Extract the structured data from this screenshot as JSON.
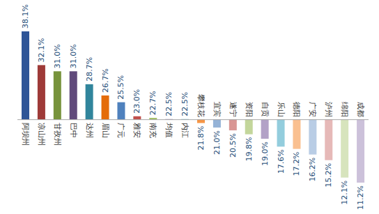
{
  "chart_data": {
    "type": "bar",
    "categories": [
      "阿坝州",
      "凉山州",
      "甘孜州",
      "巴中",
      "达州",
      "眉山",
      "广元",
      "雅安",
      "南充",
      "均值",
      "内江",
      "攀枝花",
      "宜宾",
      "遂宁",
      "资阳",
      "自贡",
      "乐山",
      "德阳",
      "广安",
      "泸州",
      "绵阳",
      "成都"
    ],
    "values": [
      38.1,
      32.1,
      31.0,
      31.0,
      28.7,
      26.7,
      25.5,
      23.0,
      22.7,
      22.5,
      22.5,
      21.8,
      21.0,
      20.5,
      19.8,
      19.0,
      17.6,
      17.2,
      16.2,
      15.2,
      12.1,
      11.2
    ],
    "value_labels": [
      "38.1%",
      "32.1%",
      "31.0%",
      "31.0%",
      "28.7%",
      "26.7%",
      "25.5%",
      "23.0%",
      "22.7%",
      "22.5%",
      "22.5%",
      "21.8%",
      "21.0%",
      "20.5%",
      "19.8%",
      "19.0%",
      "17.6%",
      "17.2%",
      "16.2%",
      "15.2%",
      "12.1%",
      "11.2%"
    ],
    "baseline": 22.4,
    "colors": [
      "#2F5597",
      "#9E3A38",
      "#77933C",
      "#604A7B",
      "#31859C",
      "#E46C0A",
      "#4F81BD",
      "#C0504D",
      "#9BBB59",
      "#8064A2",
      "#4BACC6",
      "#F79646",
      "#95B3D7",
      "#D99694",
      "#C3D69B",
      "#B3A2C7",
      "#93CDDD",
      "#FAC090",
      "#B9CDE5",
      "#E6B9B8",
      "#D7E4BD",
      "#CCC1DA"
    ],
    "data_labels": true
  }
}
